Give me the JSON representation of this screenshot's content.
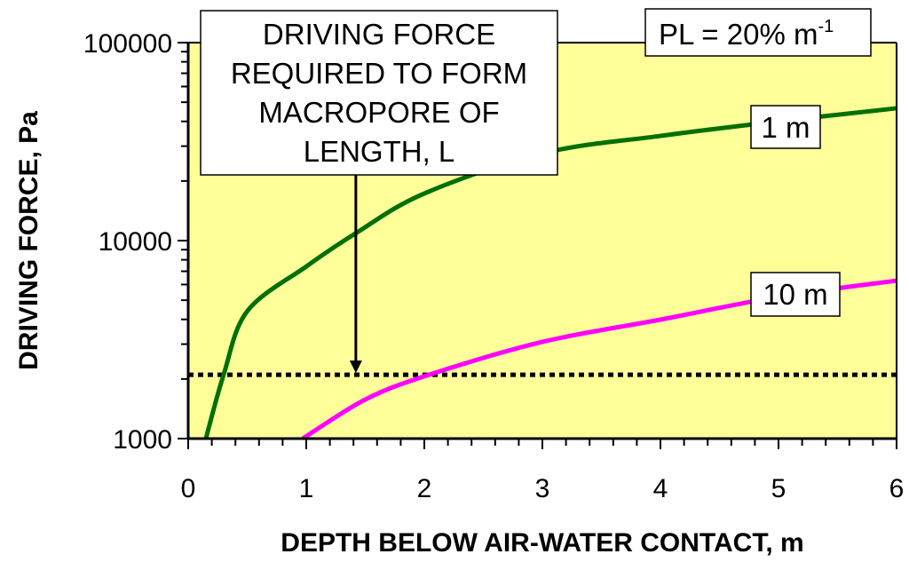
{
  "chart_data": {
    "type": "line",
    "title": "",
    "xlabel": "DEPTH BELOW AIR-WATER CONTACT, m",
    "ylabel": "DRIVING FORCE, Pa",
    "xlim": [
      0,
      6
    ],
    "ylim": [
      1000,
      100000
    ],
    "yscale": "log",
    "grid": false,
    "plot_background": "#FFFF99",
    "x_ticks": [
      "0",
      "1",
      "2",
      "3",
      "4",
      "5",
      "6"
    ],
    "y_ticks": [
      "1000",
      "10000",
      "100000"
    ],
    "series": [
      {
        "name": "1 m",
        "color": "#007000",
        "x": [
          0.15,
          0.3,
          0.5,
          1.0,
          1.42,
          2.0,
          3.0,
          4.0,
          5.0,
          6.0
        ],
        "y": [
          1000,
          2100,
          4400,
          7400,
          10900,
          17300,
          27600,
          33800,
          40000,
          46600
        ]
      },
      {
        "name": "10 m",
        "color": "#FF00FF",
        "x": [
          0.97,
          1.5,
          2.04,
          3.0,
          4.0,
          5.0,
          6.0
        ],
        "y": [
          1000,
          1575,
          2100,
          3080,
          3990,
          5200,
          6280
        ]
      }
    ],
    "reference_line": {
      "y": 2100,
      "style": "dotted",
      "color": "#000000"
    },
    "annotations": {
      "arrow_box": [
        "DRIVING FORCE",
        "REQUIRED TO FORM",
        "MACROPORE OF",
        "LENGTH, L"
      ],
      "arrow_x": 1.42,
      "parameter_box": {
        "text": "PL = 20% m",
        "superscript": "-1"
      }
    }
  }
}
